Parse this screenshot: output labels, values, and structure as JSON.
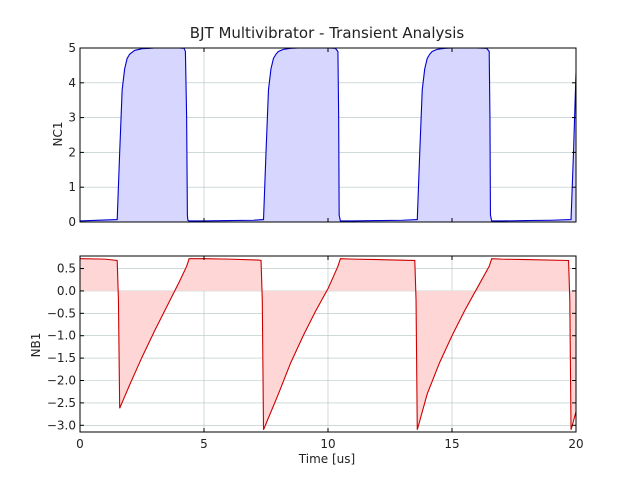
{
  "chart_data": [
    {
      "type": "area",
      "title": "BJT Multivibrator - Transient Analysis",
      "xlabel": "",
      "ylabel": "NC1",
      "xlim": [
        0,
        20
      ],
      "ylim": [
        0,
        5
      ],
      "x_ticks": [
        0,
        5,
        10,
        15,
        20
      ],
      "y_ticks": [
        0,
        1,
        2,
        3,
        4,
        5
      ],
      "y_tick_labels": [
        "0",
        "1",
        "2",
        "3",
        "4",
        "5"
      ],
      "grid": true,
      "colors": {
        "line": "#0000cc",
        "fill": "#d6d6ff"
      },
      "series": [
        {
          "x": [
            0,
            1.5,
            1.6,
            1.7,
            1.8,
            1.9,
            2.0,
            2.2,
            2.5,
            2.8,
            3.0,
            3.5,
            4.0,
            4.2,
            4.25,
            4.3,
            4.33,
            4.35,
            4.4,
            5,
            6,
            7,
            7.4,
            7.5,
            7.6,
            7.7,
            7.8,
            7.9,
            8.0,
            8.2,
            8.5,
            8.8,
            9.0,
            9.5,
            10.0,
            10.3,
            10.4,
            10.43,
            10.45,
            10.5,
            11,
            12,
            13,
            13.6,
            13.7,
            13.8,
            13.9,
            14.0,
            14.1,
            14.2,
            14.4,
            14.7,
            15.0,
            15.5,
            16.0,
            16.4,
            16.5,
            16.53,
            16.55,
            16.6,
            17,
            18,
            19,
            19.8,
            19.9,
            20.0
          ],
          "y": [
            0.03,
            0.07,
            2.0,
            3.8,
            4.4,
            4.7,
            4.82,
            4.93,
            4.98,
            4.99,
            5.0,
            5.0,
            5.0,
            4.99,
            4.9,
            3.0,
            0.2,
            0.05,
            0.03,
            0.03,
            0.04,
            0.05,
            0.07,
            2.0,
            3.8,
            4.4,
            4.7,
            4.82,
            4.9,
            4.96,
            4.99,
            5.0,
            5.0,
            5.0,
            5.0,
            4.99,
            4.9,
            3.0,
            0.2,
            0.03,
            0.03,
            0.04,
            0.05,
            0.07,
            2.0,
            3.8,
            4.4,
            4.7,
            4.82,
            4.9,
            4.96,
            4.99,
            5.0,
            5.0,
            5.0,
            4.99,
            4.9,
            3.0,
            0.2,
            0.03,
            0.03,
            0.04,
            0.05,
            0.07,
            2.0,
            4.3
          ]
        }
      ]
    },
    {
      "type": "area",
      "title": "",
      "xlabel": "Time [us]",
      "ylabel": "NB1",
      "xlim": [
        0,
        20
      ],
      "ylim": [
        -3.15,
        0.78
      ],
      "x_ticks": [
        0,
        5,
        10,
        15,
        20
      ],
      "x_tick_labels": [
        "0",
        "5",
        "10",
        "15",
        "20"
      ],
      "y_ticks": [
        0.5,
        0.0,
        -0.5,
        -1.0,
        -1.5,
        -2.0,
        -2.5,
        -3.0
      ],
      "y_tick_labels": [
        "0.5",
        "0.0",
        "−0.5",
        "−1.0",
        "−1.5",
        "−2.0",
        "−2.5",
        "−3.0"
      ],
      "grid": true,
      "colors": {
        "line": "#cc0000",
        "fill": "#ffd6d6"
      },
      "series": [
        {
          "x": [
            0,
            1.0,
            1.5,
            1.55,
            1.6,
            2.0,
            2.5,
            3.0,
            3.5,
            4.0,
            4.3,
            4.4,
            5.0,
            6.0,
            7.2,
            7.3,
            7.35,
            7.4,
            8.0,
            8.5,
            9.0,
            9.5,
            10.0,
            10.4,
            10.5,
            11.0,
            12.0,
            13.4,
            13.5,
            13.55,
            13.6,
            14.0,
            14.5,
            15.0,
            15.5,
            16.0,
            16.5,
            16.6,
            17.0,
            18.0,
            19.7,
            19.75,
            19.8,
            20.0
          ],
          "y": [
            0.72,
            0.71,
            0.68,
            -0.2,
            -2.62,
            -2.1,
            -1.48,
            -0.9,
            -0.35,
            0.2,
            0.55,
            0.72,
            0.72,
            0.71,
            0.69,
            0.68,
            -0.2,
            -3.1,
            -2.3,
            -1.6,
            -1.0,
            -0.45,
            0.05,
            0.55,
            0.72,
            0.71,
            0.7,
            0.68,
            0.68,
            -0.2,
            -3.1,
            -2.3,
            -1.6,
            -1.0,
            -0.45,
            0.05,
            0.55,
            0.72,
            0.71,
            0.7,
            0.68,
            -0.2,
            -3.1,
            -2.7
          ]
        }
      ]
    }
  ]
}
